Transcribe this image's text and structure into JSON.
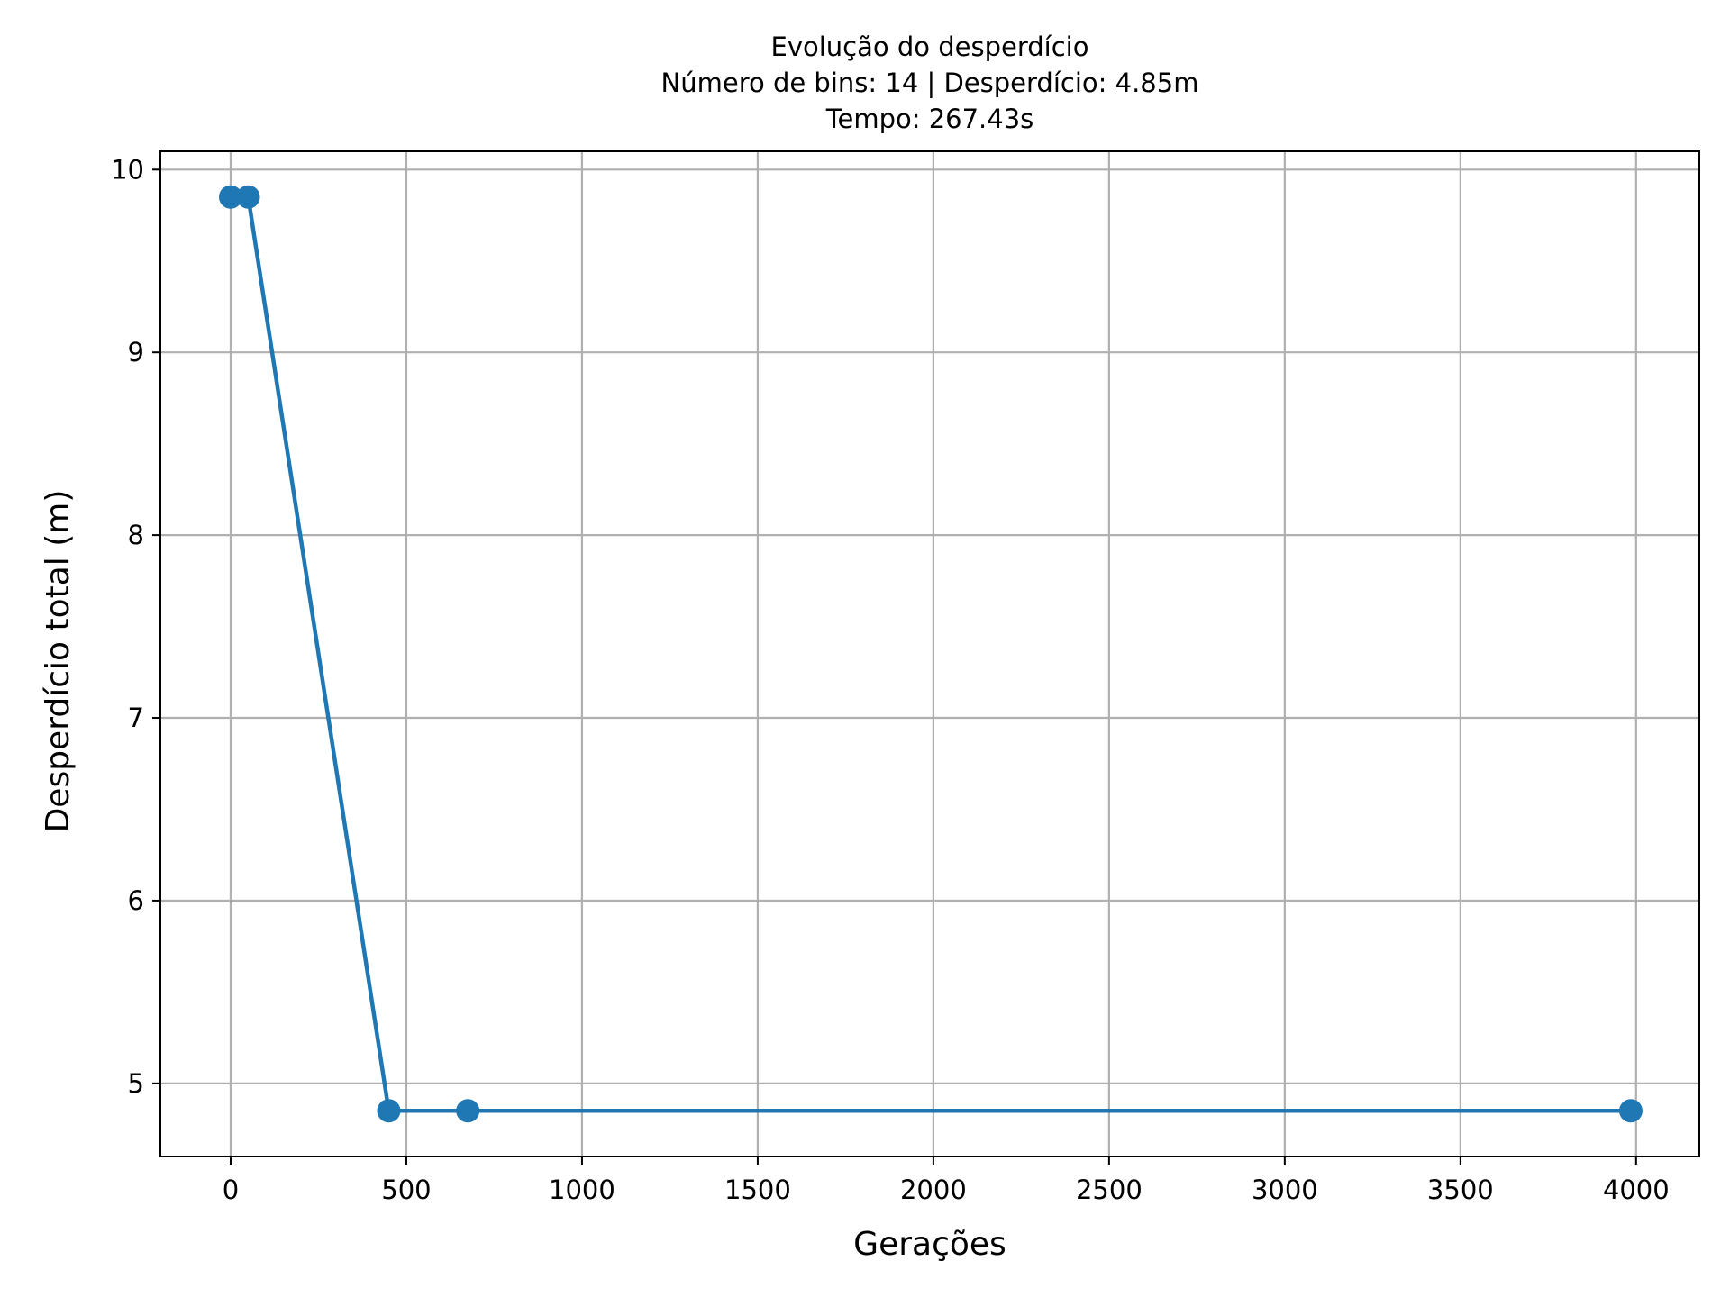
{
  "chart_data": {
    "type": "line",
    "title": "Evolução do desperdício",
    "subtitle_lines": [
      "Número de bins: 14 | Desperdício: 4.85m",
      "Tempo: 267.43s"
    ],
    "xlabel": "Gerações",
    "ylabel": "Desperdício total (m)",
    "xlim": [
      -200,
      4180
    ],
    "ylim": [
      4.6,
      10.1
    ],
    "xticks": [
      0,
      500,
      1000,
      1500,
      2000,
      2500,
      3000,
      3500,
      4000
    ],
    "yticks": [
      5,
      6,
      7,
      8,
      9,
      10
    ],
    "grid": true,
    "legend": "none",
    "series": [
      {
        "color": "#1f77b4",
        "marker": "circle",
        "x": [
          0,
          50,
          450,
          675,
          3985
        ],
        "y": [
          9.85,
          9.85,
          4.85,
          4.85,
          4.85
        ]
      }
    ]
  }
}
